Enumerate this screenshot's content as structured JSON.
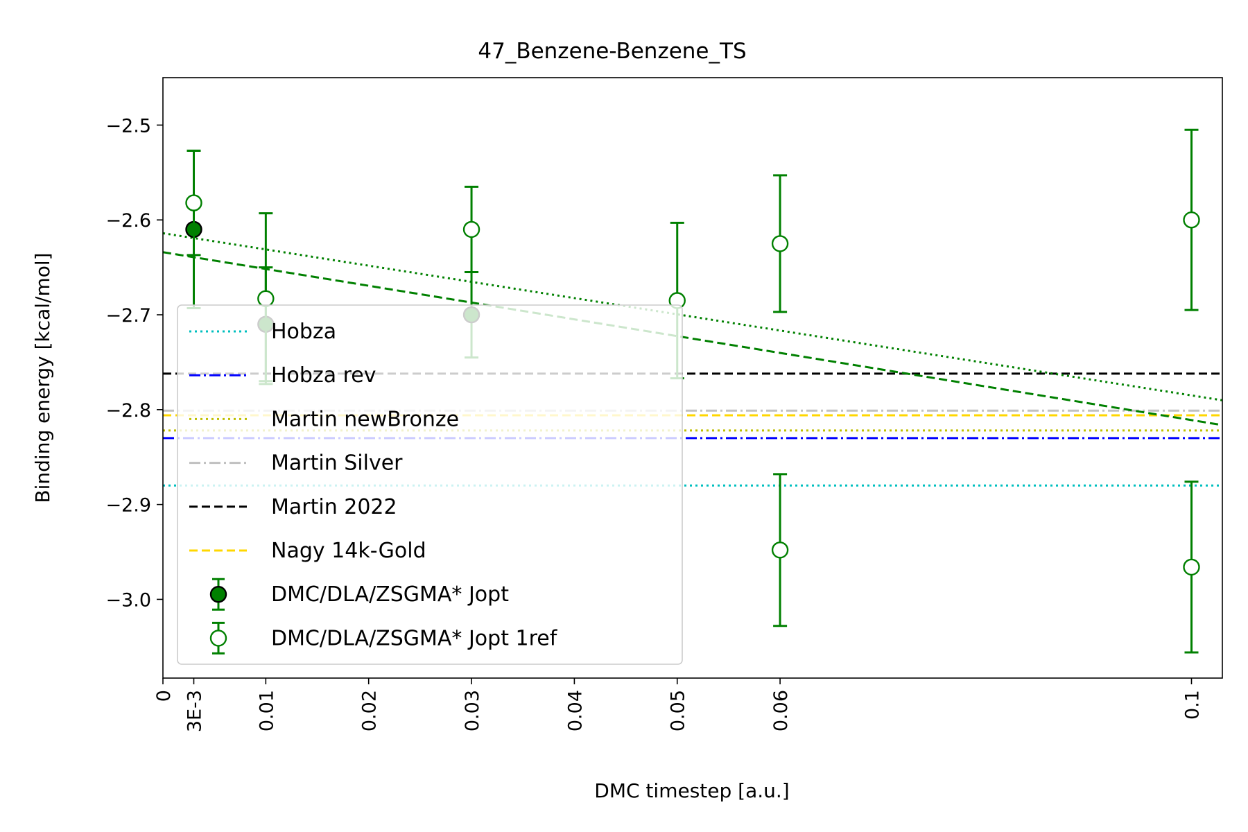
{
  "chart_data": {
    "type": "scatter",
    "title": "47_Benzene-Benzene_TS",
    "xlabel": "DMC timestep [a.u.]",
    "ylabel": "Binding energy [kcal/mol]",
    "xlim": [
      0,
      0.103
    ],
    "ylim": [
      -3.083,
      -2.45
    ],
    "x_ticks": [
      {
        "value": 0,
        "label": "0"
      },
      {
        "value": 0.003,
        "label": "3E-3"
      },
      {
        "value": 0.01,
        "label": "0.01"
      },
      {
        "value": 0.02,
        "label": "0.02"
      },
      {
        "value": 0.03,
        "label": "0.03"
      },
      {
        "value": 0.04,
        "label": "0.04"
      },
      {
        "value": 0.05,
        "label": "0.05"
      },
      {
        "value": 0.06,
        "label": "0.06"
      },
      {
        "value": 0.1,
        "label": "0.1"
      }
    ],
    "y_ticks": [
      {
        "value": -2.5,
        "label": "−2.5"
      },
      {
        "value": -2.6,
        "label": "−2.6"
      },
      {
        "value": -2.7,
        "label": "−2.7"
      },
      {
        "value": -2.8,
        "label": "−2.8"
      },
      {
        "value": -2.9,
        "label": "−2.9"
      },
      {
        "value": -3.0,
        "label": "−3.0"
      }
    ],
    "reference_lines": [
      {
        "name": "Hobza",
        "value": -2.88,
        "color": "#00bfbf",
        "style": "dotted"
      },
      {
        "name": "Hobza rev",
        "value": -2.83,
        "color": "#0000ff",
        "style": "dashdot"
      },
      {
        "name": "Martin newBronze",
        "value": -2.822,
        "color": "#bfbf00",
        "style": "dotted"
      },
      {
        "name": "Martin Silver",
        "value": -2.801,
        "color": "#c0c0c0",
        "style": "dashdot"
      },
      {
        "name": "Martin 2022",
        "value": -2.762,
        "color": "#000000",
        "style": "dashed"
      },
      {
        "name": "Nagy 14k-Gold",
        "value": -2.806,
        "color": "#ffd700",
        "style": "dashed"
      }
    ],
    "series": [
      {
        "name": "DMC/DLA/ZSGMA* Jopt",
        "marker": "filled-circle",
        "color": "#008000",
        "points": [
          {
            "x": 0.003,
            "y": -2.61,
            "err": 0.083
          },
          {
            "x": 0.01,
            "y": -2.71,
            "err": 0.06
          },
          {
            "x": 0.03,
            "y": -2.7,
            "err": 0.045
          }
        ],
        "fit": {
          "intercept": -2.634,
          "slope": -1.77,
          "style": "dashed"
        }
      },
      {
        "name": "DMC/DLA/ZSGMA* Jopt 1ref",
        "marker": "open-circle",
        "color": "#008000",
        "points": [
          {
            "x": 0.003,
            "y": -2.582,
            "err": 0.055
          },
          {
            "x": 0.01,
            "y": -2.683,
            "err": 0.09
          },
          {
            "x": 0.03,
            "y": -2.61,
            "err": 0.045
          },
          {
            "x": 0.05,
            "y": -2.685,
            "err": 0.082
          },
          {
            "x": 0.06,
            "y": -2.625,
            "err": 0.072
          },
          {
            "x": 0.06,
            "y": -2.948,
            "err": 0.08
          },
          {
            "x": 0.1,
            "y": -2.6,
            "err": 0.095
          },
          {
            "x": 0.1,
            "y": -2.966,
            "err": 0.09
          }
        ],
        "fit": {
          "intercept": -2.614,
          "slope": -1.71,
          "style": "dotted"
        }
      }
    ],
    "grid": false,
    "legend": {
      "placement": "center-left"
    }
  }
}
